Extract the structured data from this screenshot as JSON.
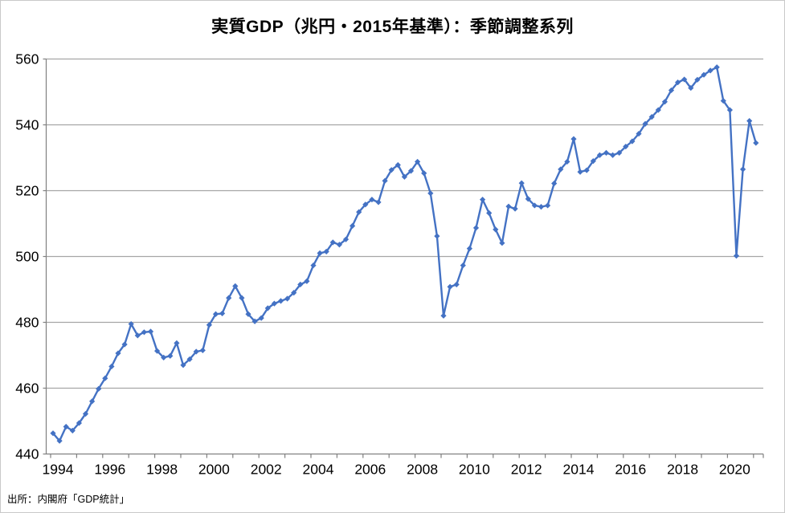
{
  "chart": {
    "title": "実質GDP（兆円・2015年基準）：季節調整系列",
    "source": "出所：内閣府「GDP統計」"
  },
  "chart_data": {
    "type": "line",
    "title": "実質GDP（兆円・2015年基準）：季節調整系列",
    "source_note": "出所：内閣府「GDP統計」",
    "x_start": "1994Q1",
    "x_end": "2021Q1",
    "frequency": "quarterly",
    "x_tick_labels": [
      "1994",
      "1996",
      "1998",
      "2000",
      "2002",
      "2004",
      "2006",
      "2008",
      "2010",
      "2012",
      "2014",
      "2016",
      "2018",
      "2020"
    ],
    "y_ticks": [
      440,
      460,
      480,
      500,
      520,
      540,
      560
    ],
    "ylim": [
      440,
      560
    ],
    "grid": "horizontal-major",
    "legend": "none",
    "marker": "diamond",
    "line_color": "#4472C4",
    "gridline_color": "#a6a6a6",
    "axis_color": "#808080",
    "series": [
      {
        "name": "実質GDP（兆円・2015年基準）季節調整系列",
        "values": [
          446.3,
          444.0,
          448.3,
          447.1,
          449.4,
          452.2,
          456.0,
          459.8,
          463.0,
          466.6,
          470.6,
          473.3,
          479.5,
          476.0,
          477.0,
          477.2,
          471.3,
          469.3,
          469.8,
          473.7,
          467.0,
          468.8,
          471.1,
          471.5,
          479.2,
          482.5,
          482.7,
          487.4,
          491.0,
          487.4,
          482.5,
          480.3,
          481.3,
          484.3,
          485.7,
          486.5,
          487.2,
          489.0,
          491.5,
          492.5,
          497.3,
          501.0,
          501.5,
          504.3,
          503.6,
          505.2,
          509.3,
          513.5,
          515.8,
          517.3,
          516.5,
          523.0,
          526.3,
          527.8,
          524.2,
          526.0,
          528.8,
          525.3,
          519.2,
          506.2,
          482.0,
          490.8,
          491.5,
          497.3,
          502.4,
          508.7,
          517.3,
          513.2,
          508.2,
          504.1,
          515.2,
          514.5,
          522.3,
          517.5,
          515.5,
          515.1,
          515.5,
          522.2,
          526.5,
          528.8,
          535.7,
          525.7,
          526.2,
          529.0,
          530.8,
          531.5,
          530.8,
          531.5,
          533.4,
          535.0,
          537.3,
          540.3,
          542.4,
          544.5,
          547.0,
          550.5,
          552.9,
          553.8,
          551.2,
          553.7,
          555.2,
          556.5,
          557.5,
          547.3,
          544.5,
          500.2,
          526.5,
          541.2,
          534.5
        ]
      }
    ]
  }
}
